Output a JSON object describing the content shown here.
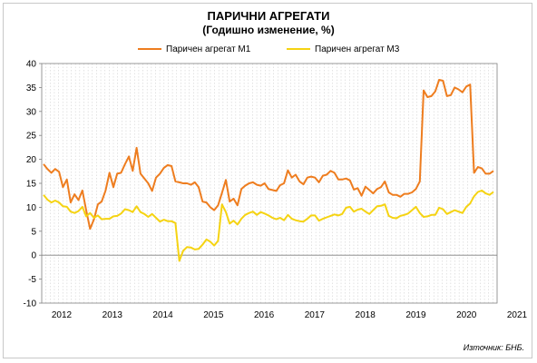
{
  "chart_data": {
    "type": "line",
    "title": "ПАРИЧНИ АГРЕГАТИ",
    "subtitle": "(Годишно  изменение, %)",
    "x_tick_labels": [
      "2012",
      "2013",
      "2014",
      "2015",
      "2016",
      "2017",
      "2018",
      "2019",
      "2020",
      "2021"
    ],
    "x_start_year": 2012,
    "points_per_year": 12,
    "ylim": [
      -10,
      40
    ],
    "y_ticks": [
      -10,
      -5,
      0,
      5,
      10,
      15,
      20,
      25,
      30,
      35,
      40
    ],
    "grid": "vertical dashed",
    "legend_position": "top",
    "series": [
      {
        "name": "Паричен агрегат М1",
        "color": "#ee7d1f",
        "values": [
          19,
          18,
          17.2,
          18,
          17.4,
          14.2,
          15.8,
          11,
          12.7,
          11.5,
          13.5,
          9.4,
          5.5,
          7.5,
          10.6,
          11.2,
          13.5,
          17.2,
          14.2,
          17,
          17.2,
          19,
          20.6,
          17.6,
          22.4,
          17,
          16,
          15,
          13.4,
          16.2,
          17,
          18.2,
          18.8,
          18.6,
          15.4,
          15.2,
          15,
          15,
          14.7,
          15.2,
          14.2,
          11.2,
          11,
          10,
          9.4,
          10.4,
          13,
          15.7,
          11.2,
          11.8,
          10.4,
          13.8,
          14.5,
          15,
          15.2,
          14.7,
          14.5,
          15,
          13.8,
          13.6,
          13.4,
          14.6,
          15,
          17.7,
          16.2,
          16.8,
          15.4,
          14.8,
          16.2,
          16.4,
          16.2,
          15.2,
          16.6,
          16.8,
          17.6,
          17.2,
          15.8,
          15.8,
          16,
          15.6,
          13.7,
          14,
          12.4,
          14.3,
          13.6,
          12.9,
          13.8,
          14.2,
          15.4,
          13.1,
          12.6,
          12.6,
          12.2,
          12.8,
          12.8,
          13.1,
          13.8,
          15.4,
          34.4,
          33,
          33.2,
          34.2,
          36.6,
          36.4,
          33.2,
          33.4,
          35,
          34.6,
          34,
          35.2,
          35.6,
          17.2,
          18.4,
          18.1,
          17,
          17,
          17.6
        ],
        "values_note": ""
      },
      {
        "name": "Паричен агрегат М3",
        "color": "#f5d312",
        "values": [
          12.6,
          11.6,
          11,
          11.4,
          11,
          10.2,
          10.1,
          9.1,
          8.8,
          9.2,
          10.1,
          8.1,
          8.8,
          7.8,
          8.3,
          7.5,
          7.6,
          7.6,
          8.1,
          8.2,
          8.7,
          9.6,
          9.4,
          9,
          10.2,
          9,
          8.6,
          8,
          8.6,
          7.8,
          7,
          7.4,
          7.1,
          7.1,
          6.7,
          -1.2,
          0.9,
          1.7,
          1.6,
          1.2,
          1.3,
          2.2,
          3.3,
          2.8,
          2,
          3,
          10.6,
          9,
          6.6,
          7.2,
          6.4,
          7.6,
          8.4,
          8.8,
          9.1,
          8.4,
          9,
          8.7,
          8.3,
          7.8,
          7.5,
          7.8,
          7.3,
          8.4,
          7.6,
          7.3,
          7.1,
          7,
          7.6,
          8.3,
          8.3,
          7.2,
          7.6,
          7.9,
          8.2,
          8.5,
          8.3,
          8.6,
          9.9,
          10.1,
          9.1,
          9.5,
          9.7,
          9.1,
          8.6,
          9.4,
          10.2,
          10.3,
          10.6,
          8.2,
          7.8,
          7.7,
          8.2,
          8.4,
          8.7,
          9.4,
          10.1,
          8.8,
          8,
          8.1,
          8.4,
          8.4,
          9.9,
          9.6,
          8.6,
          9,
          9.4,
          9.1,
          8.8,
          10.1,
          10.8,
          12.3,
          13.2,
          13.5,
          12.9,
          12.6,
          13.2
        ]
      }
    ],
    "source": "Източник: БНБ."
  }
}
